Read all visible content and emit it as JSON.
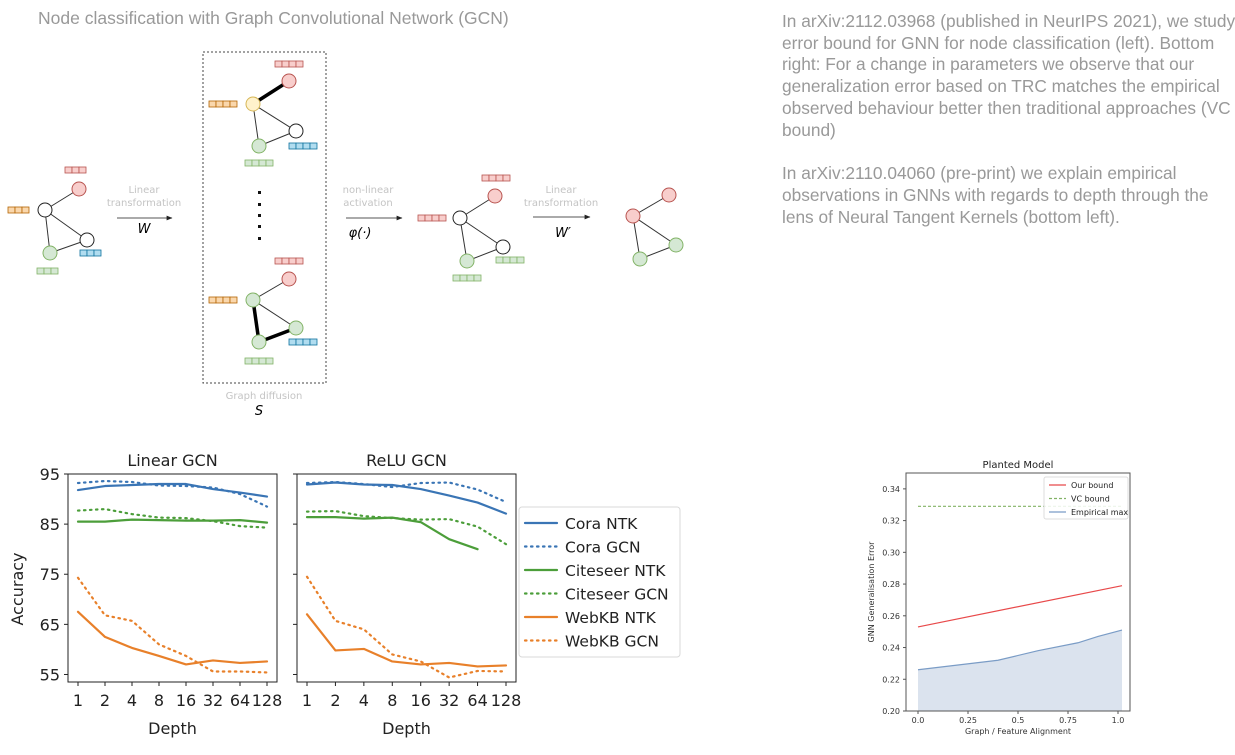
{
  "diagram": {
    "title": "Node classification with Graph Convolutional Network (GCN)",
    "steps": [
      {
        "label_line1": "Linear",
        "label_line2": "transformation",
        "symbol": "W"
      },
      {
        "label_line1": "non-linear",
        "label_line2": "activation",
        "symbol": "φ(·)"
      },
      {
        "label_line1": "Linear",
        "label_line2": "transformation",
        "symbol": "W′"
      }
    ],
    "diffusion": {
      "label": "Graph diffusion",
      "symbol": "S"
    },
    "colors": {
      "red": "#f8cecc",
      "red_stroke": "#b85450",
      "green": "#d5e8d4",
      "green_stroke": "#82b366",
      "orange": "#fad7ac",
      "orange_stroke": "#b46504",
      "blue": "#b1ddf0",
      "blue_stroke": "#10739e",
      "yellow": "#fff2cc",
      "yellow_stroke": "#d6b656"
    }
  },
  "description": {
    "paragraphs": [
      "In arXiv:2112.03968 (published in NeurIPS 2021), we study error bound for GNN for node classification (left). Bottom right: For a change in parameters we observe that our generalization error based on TRC matches the empirical observed behaviour better then traditional approaches (VC bound)",
      "In arXiv:2110.04060 (pre-print) we explain empirical observations in GNNs with regards to depth through the lens of Neural Tangent Kernels (bottom left)."
    ]
  },
  "chart_data": [
    {
      "type": "line",
      "title": "Linear GCN",
      "xlabel": "Depth",
      "ylabel": "Accuracy",
      "categories": [
        "1",
        "2",
        "4",
        "8",
        "16",
        "32",
        "64",
        "128"
      ],
      "yticks": [
        55,
        65,
        75,
        85,
        95
      ],
      "ylim": [
        53.5,
        95
      ],
      "series": [
        {
          "name": "Cora NTK",
          "color": "#3a75b5",
          "style": "solid",
          "values": [
            91.8,
            92.6,
            92.8,
            93.0,
            93.0,
            92.0,
            91.3,
            90.5
          ]
        },
        {
          "name": "Cora GCN",
          "color": "#3a75b5",
          "style": "dotted",
          "values": [
            93.2,
            93.6,
            93.4,
            92.7,
            92.6,
            92.3,
            91.0,
            88.5
          ]
        },
        {
          "name": "Citeseer NTK",
          "color": "#4c9e3a",
          "style": "solid",
          "values": [
            85.5,
            85.5,
            85.9,
            85.8,
            85.7,
            85.7,
            85.8,
            85.3
          ]
        },
        {
          "name": "Citeseer GCN",
          "color": "#4c9e3a",
          "style": "dotted",
          "values": [
            87.7,
            88.0,
            87.0,
            86.3,
            86.2,
            85.6,
            84.6,
            84.3
          ]
        },
        {
          "name": "WebKB NTK",
          "color": "#e8802a",
          "style": "solid",
          "values": [
            67.5,
            62.5,
            60.3,
            58.7,
            57.0,
            57.8,
            57.3,
            57.6
          ]
        },
        {
          "name": "WebKB GCN",
          "color": "#e8802a",
          "style": "dotted",
          "values": [
            74.3,
            66.8,
            65.7,
            61.0,
            58.7,
            55.6,
            55.6,
            55.4
          ]
        }
      ]
    },
    {
      "type": "line",
      "title": "ReLU GCN",
      "xlabel": "Depth",
      "ylabel": "",
      "categories": [
        "1",
        "2",
        "4",
        "8",
        "16",
        "32",
        "64",
        "128"
      ],
      "yticks": [
        55,
        65,
        75,
        85,
        95
      ],
      "ylim": [
        53.5,
        95
      ],
      "series": [
        {
          "name": "Cora NTK",
          "color": "#3a75b5",
          "style": "solid",
          "values": [
            92.9,
            93.3,
            92.9,
            92.8,
            92.0,
            90.7,
            89.3,
            87.1
          ]
        },
        {
          "name": "Cora GCN",
          "color": "#3a75b5",
          "style": "dotted",
          "values": [
            93.2,
            93.4,
            93.0,
            92.4,
            93.2,
            93.3,
            91.9,
            89.4
          ]
        },
        {
          "name": "Citeseer NTK",
          "color": "#4c9e3a",
          "style": "solid",
          "values": [
            86.4,
            86.4,
            86.1,
            86.3,
            85.4,
            82.0,
            80.0,
            null
          ]
        },
        {
          "name": "Citeseer GCN",
          "color": "#4c9e3a",
          "style": "dotted",
          "values": [
            87.5,
            87.6,
            86.6,
            86.2,
            85.9,
            86.0,
            84.5,
            81.0
          ]
        },
        {
          "name": "WebKB NTK",
          "color": "#e8802a",
          "style": "solid",
          "values": [
            67.0,
            59.8,
            60.1,
            57.6,
            57.0,
            57.3,
            56.6,
            56.8
          ]
        },
        {
          "name": "WebKB GCN",
          "color": "#e8802a",
          "style": "dotted",
          "values": [
            74.5,
            65.7,
            64.0,
            59.0,
            57.6,
            54.4,
            55.7,
            55.6
          ]
        }
      ]
    },
    {
      "type": "line",
      "title": "Planted Model",
      "xlabel": "Graph / Feature Alignment",
      "ylabel": "GNN Generalisation Error",
      "xticks": [
        "0.0",
        "0.25",
        "0.5",
        "0.75",
        "1.0"
      ],
      "xtick_values": [
        0,
        0.25,
        0.5,
        0.75,
        1.0
      ],
      "xlim": [
        -0.06,
        1.06
      ],
      "yticks": [
        "0.20",
        "0.22",
        "0.24",
        "0.26",
        "0.28",
        "0.30",
        "0.32",
        "0.34"
      ],
      "ytick_values": [
        0.2,
        0.22,
        0.24,
        0.26,
        0.28,
        0.3,
        0.32,
        0.34
      ],
      "ylim": [
        0.2,
        0.35
      ],
      "legend": "top-right",
      "series": [
        {
          "name": "Our bound",
          "color": "#e8494a",
          "style": "solid",
          "x": [
            0,
            1.02
          ],
          "values": [
            0.253,
            0.279
          ]
        },
        {
          "name": "VC bound",
          "color": "#82b366",
          "style": "dashed",
          "x": [
            0,
            1.02
          ],
          "values": [
            0.329,
            0.329
          ]
        },
        {
          "name": "Empirical max",
          "color": "#7a9cc6",
          "style": "solid-filled",
          "fill": "#dbe3ee",
          "x": [
            0,
            0.2,
            0.4,
            0.6,
            0.8,
            0.9,
            1.02
          ],
          "values": [
            0.226,
            0.229,
            0.232,
            0.238,
            0.243,
            0.247,
            0.251
          ]
        }
      ]
    }
  ],
  "legend_left": {
    "entries": [
      "Cora NTK",
      "Cora GCN",
      "Citeseer NTK",
      "Citeseer GCN",
      "WebKB NTK",
      "WebKB GCN"
    ]
  }
}
